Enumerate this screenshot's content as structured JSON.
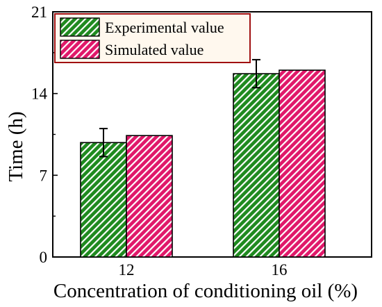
{
  "chart_data": {
    "type": "bar",
    "categories": [
      "12",
      "16"
    ],
    "series": [
      {
        "name": "Experimental value",
        "values": [
          9.8,
          15.7
        ],
        "error": [
          1.2,
          1.2
        ],
        "color": "#1f8a1f",
        "hatch_color": "#ffffff"
      },
      {
        "name": "Simulated value",
        "values": [
          10.4,
          16.0
        ],
        "color": "#e0186a",
        "hatch_color": "#ffffff"
      }
    ],
    "xlabel": "Concentration of conditioning oil (%)",
    "ylabel": "Time (h)",
    "ylim": [
      0,
      21
    ],
    "yticks": [
      "0",
      "7",
      "14",
      "21"
    ],
    "legend_position": "top-left",
    "legend_border_color": "#a01010",
    "legend_background": "#fff8ee",
    "grid": false
  }
}
